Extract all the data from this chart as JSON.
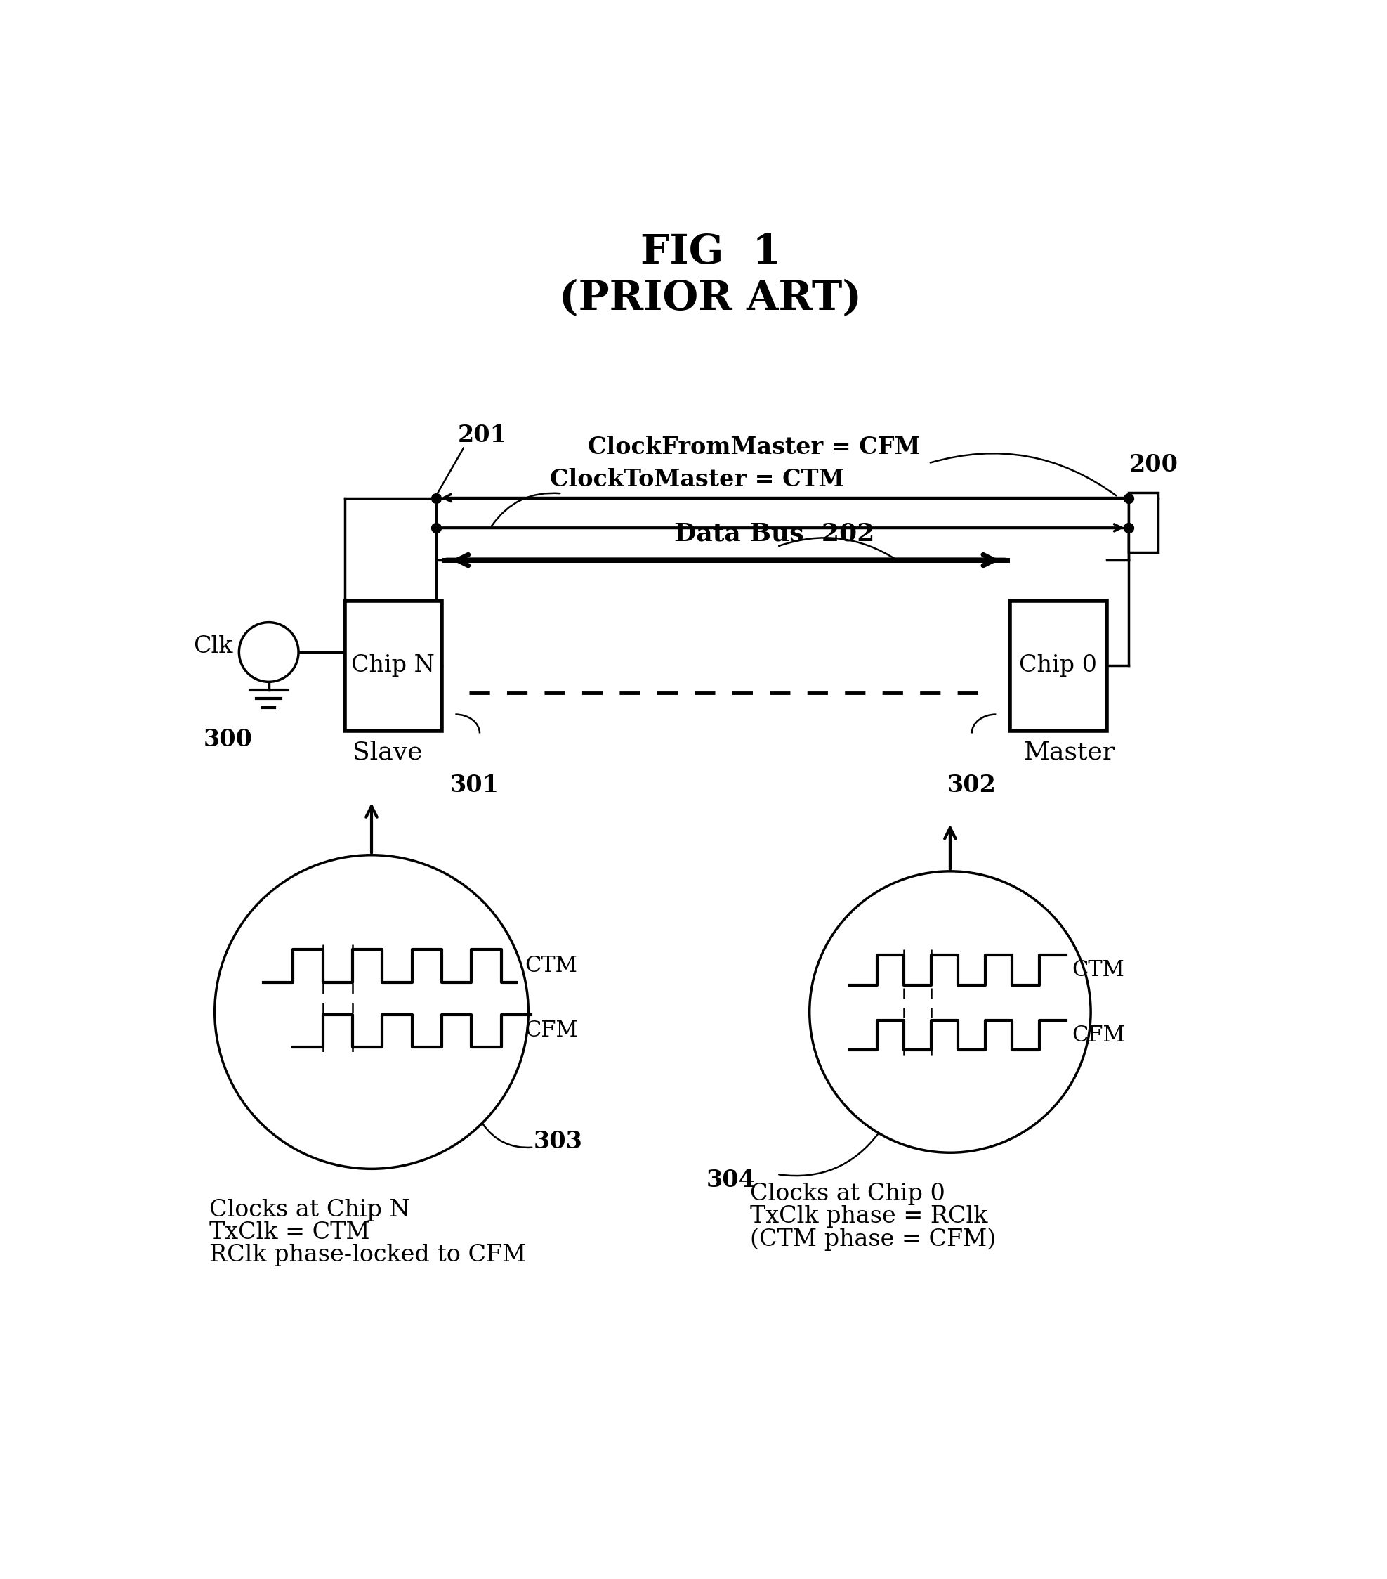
{
  "title_line1": "FIG  1",
  "title_line2": "(PRIOR ART)",
  "bg_color": "#ffffff",
  "line_color": "#000000",
  "label_201": "201",
  "label_200": "200",
  "label_202": "202",
  "label_300": "300",
  "label_301": "301",
  "label_302": "302",
  "label_303": "303",
  "label_304": "304",
  "text_cfm": "ClockFromMaster = CFM",
  "text_ctm": "ClockToMaster = CTM",
  "text_databus": "Data Bus",
  "text_clk": "Clk",
  "text_chipN": "Chip N",
  "text_chip0": "Chip 0",
  "text_slave": "Slave",
  "text_master": "Master",
  "text_left_line1": "Clocks at Chip N",
  "text_left_line2": "TxClk = CTM",
  "text_left_line3": "RClk phase-locked to CFM",
  "text_right_line1": "Clocks at Chip 0",
  "text_right_line2": "TxClk phase = RClk",
  "text_right_line3": "(CTM phase = CFM)",
  "text_ctm_label": "CTM",
  "text_cfm_label": "CFM"
}
